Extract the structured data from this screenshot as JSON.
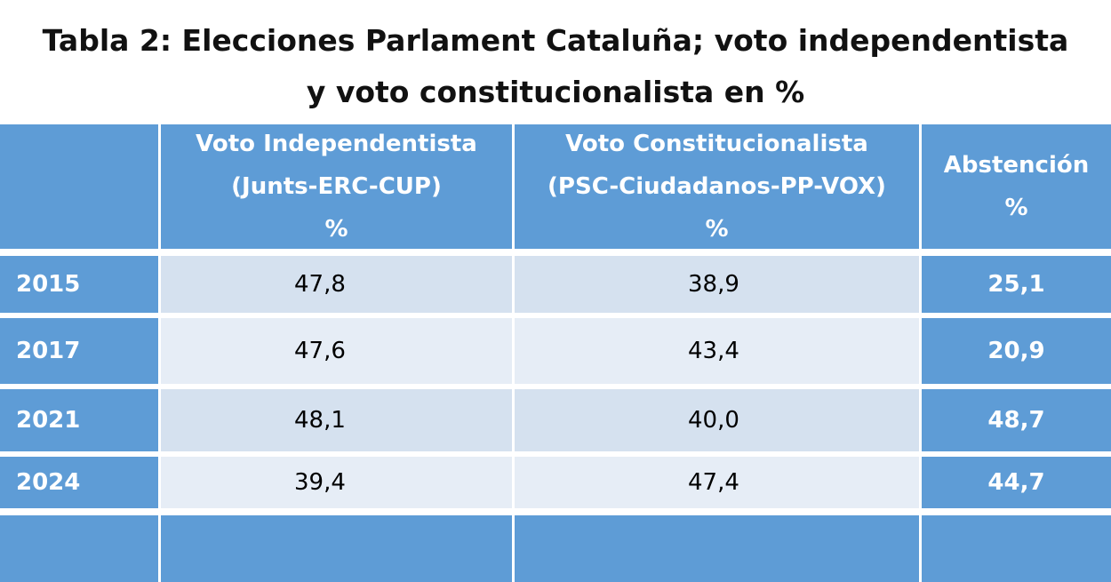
{
  "title": [
    "Tabla 2: Elecciones Parlament Cataluña; voto independentista",
    "y voto constitucionalista en %"
  ],
  "table": {
    "header": [
      [],
      [
        "Voto Independentista",
        "(Junts-ERC-CUP)",
        "%"
      ],
      [
        "Voto Constitucionalista",
        "(PSC-Ciudadanos-PP-VOX)",
        "%"
      ],
      [
        "Abstención",
        "%"
      ]
    ],
    "rows": [
      [
        "2015",
        "47,8",
        "38,9",
        "25,1"
      ],
      [
        "2017",
        "47,6",
        "43,4",
        "20,9"
      ],
      [
        "2021",
        "48,1",
        "40,0",
        "48,7"
      ],
      [
        "2024",
        "39,4",
        "47,4",
        "44,7"
      ]
    ]
  }
}
